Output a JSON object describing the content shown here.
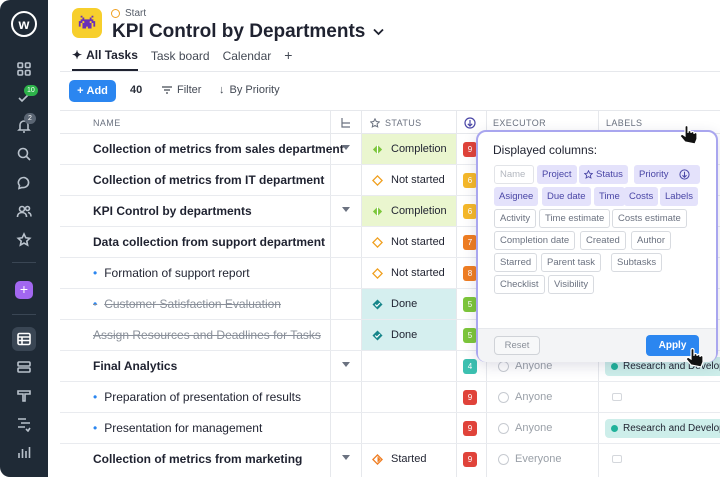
{
  "sidebar": {
    "logo": "w",
    "badge_tasks": "10",
    "badge_notifications": "2"
  },
  "header": {
    "breadcrumb": "Start",
    "title": "KPI Control by Departments",
    "tabs": [
      {
        "label": "All Tasks"
      },
      {
        "label": "Task board"
      },
      {
        "label": "Calendar"
      },
      {
        "label": "+"
      }
    ]
  },
  "toolbar": {
    "add_label": "Add",
    "count": "40",
    "filter_label": "Filter",
    "sort_label": "By Priority"
  },
  "columns": {
    "name": "NAME",
    "status": "STATUS",
    "executor": "EXECUTOR",
    "labels": "LABELS"
  },
  "rows": [
    {
      "name": "Collection of metrics from sales department",
      "status": "Completion",
      "priority": "9"
    },
    {
      "name": "Collection of metrics from IT department",
      "status": "Not started",
      "priority": "6"
    },
    {
      "name": "KPI Control by departments",
      "status": "Completion",
      "priority": "6"
    },
    {
      "name": "Data collection from support department",
      "status": "Not started",
      "priority": "7"
    },
    {
      "name": "Formation of support report",
      "status": "Not started",
      "priority": "8"
    },
    {
      "name": "Customer Satisfaction Evaluation",
      "status": "Done",
      "priority": "5"
    },
    {
      "name": "Assign Resources and Deadlines for Tasks",
      "status": "Done",
      "priority": "5"
    },
    {
      "name": "Final Analytics",
      "status": "",
      "priority": "4",
      "executor": "Anyone",
      "label": "Research and Develop"
    },
    {
      "name": "Preparation of presentation of results",
      "status": "",
      "priority": "9",
      "executor": "Anyone"
    },
    {
      "name": "Presentation for management",
      "status": "",
      "priority": "9",
      "executor": "Anyone",
      "label": "Research and Develop"
    },
    {
      "name": "Collection of metrics from marketing",
      "status": "Started",
      "priority": "9",
      "executor": "Everyone"
    }
  ],
  "popup": {
    "title": "Displayed columns:",
    "name_placeholder": "Name",
    "selected": [
      "Project",
      "Status",
      "Priority",
      "Asignee",
      "Due date",
      "Time",
      "Costs",
      "Labels"
    ],
    "available": [
      "Activity",
      "Time estimate",
      "Costs estimate",
      "Completion date",
      "Created",
      "Author",
      "Starred",
      "Parent task",
      "Subtasks",
      "Checklist",
      "Visibility"
    ],
    "reset_label": "Reset",
    "apply_label": "Apply"
  },
  "colors": {
    "accent": "#2b86f0",
    "completion_bg": "#eaf6cf",
    "done_bg": "#d5efef",
    "popup_border": "#a9a6ef"
  }
}
